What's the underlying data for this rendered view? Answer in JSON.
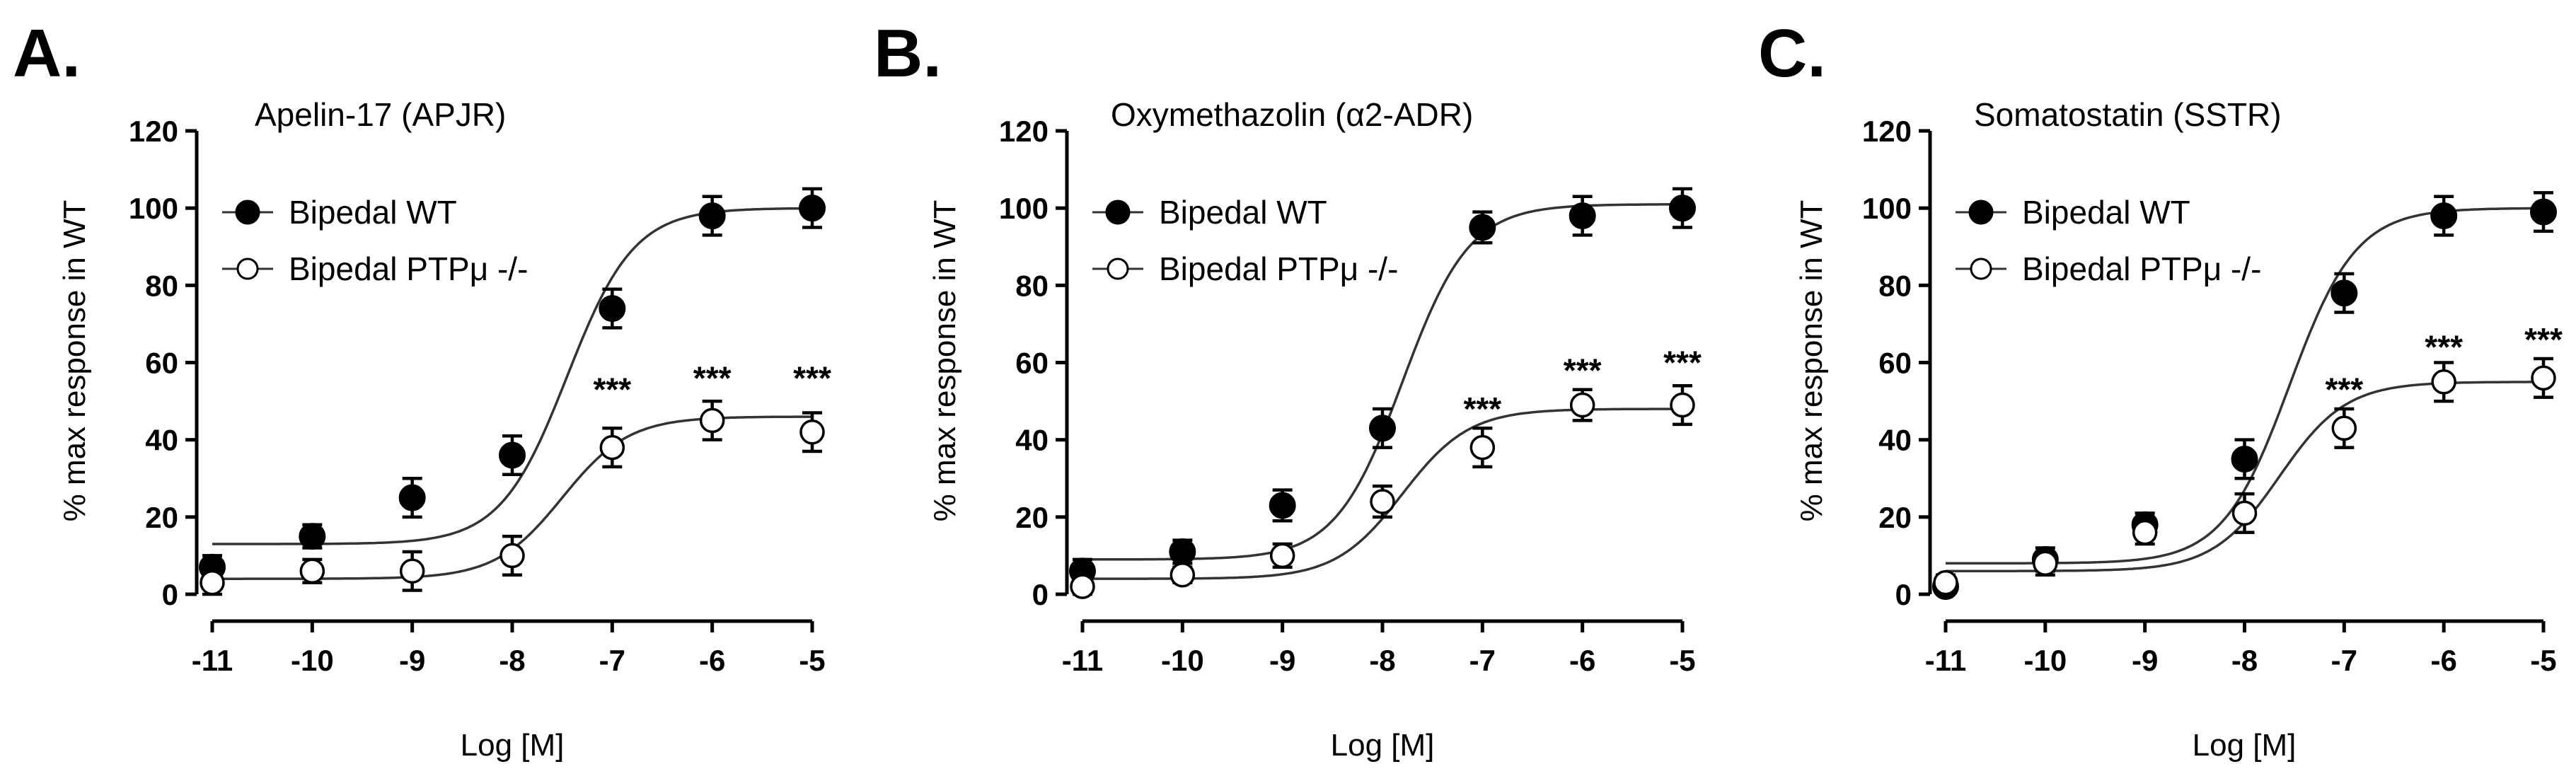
{
  "chart_data": [
    {
      "type": "scatter",
      "panel_letter": "A.",
      "title": "Apelin-17 (APJR)",
      "xlabel": "Log [M]",
      "ylabel": "% max response in WT",
      "xlim": [
        -11,
        -5
      ],
      "ylim": [
        0,
        120
      ],
      "xticks": [
        "-11",
        "-10",
        "-9",
        "-8",
        "-7",
        "-6",
        "-5"
      ],
      "yticks": [
        "0",
        "20",
        "40",
        "60",
        "80",
        "100",
        "120"
      ],
      "x": [
        -11,
        -10,
        -9,
        -8,
        -7,
        -6,
        -5
      ],
      "series": [
        {
          "name": "Bipedal WT",
          "marker": "filled",
          "values": [
            7,
            15,
            25,
            36,
            74,
            98,
            100
          ],
          "errors": [
            3,
            3,
            5,
            5,
            5,
            5,
            5
          ],
          "fit": {
            "bottom": 13,
            "top": 100,
            "ec50_log": -7.45,
            "hill": 1.3
          }
        },
        {
          "name": "Bipedal PTPμ -/-",
          "marker": "open",
          "values": [
            3,
            6,
            6,
            10,
            38,
            45,
            42
          ],
          "errors": [
            3,
            3,
            5,
            5,
            5,
            5,
            5
          ],
          "fit": {
            "bottom": 4,
            "top": 46,
            "ec50_log": -7.5,
            "hill": 1.3
          }
        }
      ],
      "annotations": [
        {
          "x": -7,
          "y": 53,
          "text": "***"
        },
        {
          "x": -6,
          "y": 56,
          "text": "***"
        },
        {
          "x": -5,
          "y": 56,
          "text": "***"
        }
      ],
      "legend_position": "top-left"
    },
    {
      "type": "scatter",
      "panel_letter": "B.",
      "title": "Oxymethazolin (α2-ADR)",
      "xlabel": "Log [M]",
      "ylabel": "% max response in WT",
      "xlim": [
        -11,
        -5
      ],
      "ylim": [
        0,
        120
      ],
      "xticks": [
        "-11",
        "-10",
        "-9",
        "-8",
        "-7",
        "-6",
        "-5"
      ],
      "yticks": [
        "0",
        "20",
        "40",
        "60",
        "80",
        "100",
        "120"
      ],
      "x": [
        -11,
        -10,
        -9,
        -8,
        -7,
        -6,
        -5
      ],
      "series": [
        {
          "name": "Bipedal WT",
          "marker": "filled",
          "values": [
            6,
            11,
            23,
            43,
            95,
            98,
            100
          ],
          "errors": [
            3,
            3,
            4,
            5,
            4,
            5,
            5
          ],
          "fit": {
            "bottom": 9,
            "top": 101,
            "ec50_log": -7.8,
            "hill": 1.3
          }
        },
        {
          "name": "Bipedal PTPμ -/-",
          "marker": "open",
          "values": [
            2,
            5,
            10,
            24,
            38,
            49,
            49
          ],
          "errors": [
            2,
            2,
            3,
            4,
            5,
            4,
            5
          ],
          "fit": {
            "bottom": 4,
            "top": 48,
            "ec50_log": -7.8,
            "hill": 1.3
          }
        }
      ],
      "annotations": [
        {
          "x": -7,
          "y": 48,
          "text": "***"
        },
        {
          "x": -6,
          "y": 58,
          "text": "***"
        },
        {
          "x": -5,
          "y": 60,
          "text": "***"
        }
      ],
      "legend_position": "top-left"
    },
    {
      "type": "scatter",
      "panel_letter": "C.",
      "title": "Somatostatin (SSTR)",
      "xlabel": "Log [M]",
      "ylabel": "% max response in WT",
      "xlim": [
        -11,
        -5
      ],
      "ylim": [
        0,
        120
      ],
      "xticks": [
        "-11",
        "-10",
        "-9",
        "-8",
        "-7",
        "-6",
        "-5"
      ],
      "yticks": [
        "0",
        "20",
        "40",
        "60",
        "80",
        "100",
        "120"
      ],
      "x": [
        -11,
        -10,
        -9,
        -8,
        -7,
        -6,
        -5
      ],
      "series": [
        {
          "name": "Bipedal WT",
          "marker": "filled",
          "values": [
            2,
            9,
            18,
            35,
            78,
            98,
            99
          ],
          "errors": [
            2,
            3,
            3,
            5,
            5,
            5,
            5
          ],
          "fit": {
            "bottom": 8,
            "top": 100,
            "ec50_log": -7.55,
            "hill": 1.3
          }
        },
        {
          "name": "Bipedal PTPμ -/-",
          "marker": "open",
          "values": [
            3,
            8,
            16,
            21,
            43,
            55,
            56
          ],
          "errors": [
            2,
            3,
            3,
            5,
            5,
            5,
            5
          ],
          "fit": {
            "bottom": 6,
            "top": 55,
            "ec50_log": -7.65,
            "hill": 1.3
          }
        }
      ],
      "annotations": [
        {
          "x": -7,
          "y": 53,
          "text": "***"
        },
        {
          "x": -6,
          "y": 64,
          "text": "***"
        },
        {
          "x": -5,
          "y": 66,
          "text": "***"
        }
      ],
      "legend_position": "top-left"
    }
  ]
}
